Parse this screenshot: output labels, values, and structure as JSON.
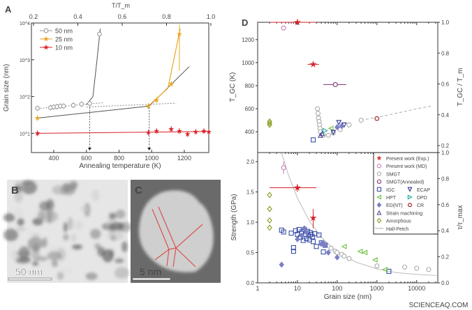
{
  "panels": {
    "a": "A",
    "b": "B",
    "c": "C",
    "d": "D"
  },
  "micrographs": {
    "b_scale": "50 nm",
    "c_scale": "5 nm"
  },
  "watermark": "SCIENCEAQ.COM",
  "chart_data": [
    {
      "id": "A",
      "type": "line",
      "xlabel": "Annealing temperature (K)",
      "ylabel": "Grain size (nm)",
      "top_xlabel": "T/T_m",
      "x_ticks": [
        400,
        600,
        800,
        1000,
        1200
      ],
      "top_ticks": [
        "0.2",
        "0.4",
        "0.6",
        "0.8",
        "1.0"
      ],
      "y_ticks": [
        "10^1",
        "10^2",
        "10^3",
        "10^4"
      ],
      "xlim": [
        263,
        1350
      ],
      "ylim": [
        3,
        10000
      ],
      "yscale": "log",
      "toplim": [
        0.2,
        1.0
      ],
      "legend_position": "top-left",
      "series": [
        {
          "name": "50 nm",
          "color": "#999999",
          "marker": "circle",
          "filled": false,
          "x": [
            300,
            380,
            400,
            420,
            440,
            460,
            520,
            570,
            620,
            680
          ],
          "y": [
            48,
            50,
            52,
            53,
            55,
            55,
            58,
            62,
            65,
            5000
          ]
        },
        {
          "name": "25 nm",
          "color": "#e8a620",
          "marker": "star",
          "filled": true,
          "x": [
            300,
            980,
            1030,
            1120,
            1170
          ],
          "y": [
            26,
            55,
            80,
            220,
            5000
          ]
        },
        {
          "name": "10 nm",
          "color": "#d62027",
          "marker": "star",
          "filled": true,
          "x": [
            300,
            980,
            1030,
            1120,
            1170,
            1220,
            1270,
            1320,
            1350
          ],
          "y": [
            10,
            10.5,
            11.5,
            13,
            11.5,
            9.5,
            11,
            11.5,
            11
          ]
        }
      ],
      "critical_temperatures": [
        620,
        985
      ]
    },
    {
      "id": "D-top",
      "type": "scatter",
      "ylabel": "T_GC (K)",
      "right_ylabel": "T_GC / T_m",
      "y_ticks": [
        400,
        600,
        800,
        1000,
        1200
      ],
      "right_ticks": [
        "0.2",
        "0.4",
        "0.6",
        "0.8",
        "1.0"
      ],
      "xlim": [
        1,
        34000
      ],
      "xscale": "log",
      "ylim": [
        220,
        1350
      ],
      "right_lim": [
        0.2,
        1.0
      ],
      "series": [
        {
          "key": "exp",
          "x": [
            10,
            25
          ],
          "y": [
            1350,
            985
          ],
          "xerr": [
            [
              2,
              30
            ],
            [
              18,
              35
            ]
          ]
        },
        {
          "key": "md",
          "x": [
            4.5
          ],
          "y": [
            1300
          ]
        },
        {
          "key": "smgt_annealed",
          "x": [
            90
          ],
          "y": [
            810
          ],
          "xerr": [
            [
              45,
              170
            ]
          ]
        },
        {
          "key": "smgt",
          "x": [
            32,
            33,
            34,
            35,
            36,
            37,
            38,
            45,
            60,
            80,
            120,
            200,
            400
          ],
          "y": [
            600,
            560,
            520,
            490,
            460,
            430,
            400,
            370,
            370,
            390,
            420,
            460,
            500
          ]
        },
        {
          "key": "amorphous",
          "x": [
            2,
            2,
            2
          ],
          "y": [
            490,
            475,
            460
          ]
        },
        {
          "key": "cr",
          "x": [
            1000
          ],
          "y": [
            515
          ]
        },
        {
          "key": "igc",
          "x": [
            25
          ],
          "y": [
            330
          ]
        },
        {
          "key": "strain",
          "x": [
            38,
            42
          ],
          "y": [
            370,
            385
          ]
        },
        {
          "key": "dpd",
          "x": [
            50
          ],
          "y": [
            410
          ]
        },
        {
          "key": "hpt",
          "x": [
            70
          ],
          "y": [
            430
          ]
        },
        {
          "key": "ecap",
          "x": [
            80,
            110,
            150
          ],
          "y": [
            395,
            480,
            460
          ]
        },
        {
          "key": "ednt",
          "x": [
            100,
            130
          ],
          "y": [
            440,
            450
          ]
        }
      ],
      "trend": {
        "x": [
          400,
          1000,
          3000,
          10000,
          25000
        ],
        "y": [
          500,
          525,
          560,
          600,
          625
        ]
      }
    },
    {
      "id": "D-bottom",
      "type": "scatter",
      "xlabel": "Grain size (nm)",
      "ylabel": "Strength (GPa)",
      "right_ylabel": "τ/τ_max",
      "x_ticks": [
        "1",
        "10",
        "100",
        "1000",
        "10000"
      ],
      "y_ticks": [
        "0.0",
        "0.5",
        "1.0",
        "1.5",
        "2.0"
      ],
      "right_ticks": [
        "0.0",
        "0.2",
        "0.4",
        "0.6",
        "0.8",
        "1.0"
      ],
      "xlim": [
        1,
        34000
      ],
      "xscale": "log",
      "ylim": [
        0,
        2.15
      ],
      "right_lim": [
        0,
        1.0
      ],
      "legend_position": "top-right",
      "legend": [
        {
          "key": "exp",
          "label": "Present work (Exp.)",
          "color": "#d62027",
          "marker": "star",
          "filled": true
        },
        {
          "key": "md",
          "label": "Present work (MD)",
          "color": "#c878b4",
          "marker": "circle"
        },
        {
          "key": "smgt",
          "label": "SMGT",
          "color": "#aaaaaa",
          "marker": "circle"
        },
        {
          "key": "smgt_annealed",
          "label": "SMGT(Annealed)",
          "color": "#7b2d6e",
          "marker": "circle"
        },
        {
          "key": "igc",
          "label": "IGC",
          "color": "#3a4fa8",
          "marker": "square"
        },
        {
          "key": "ecap",
          "label": "ECAP",
          "color": "#2a2f8a",
          "marker": "tri-down"
        },
        {
          "key": "hpt",
          "label": "HPT",
          "color": "#6cbf3c",
          "marker": "tri-left"
        },
        {
          "key": "dpd",
          "label": "DPD",
          "color": "#1aa6a0",
          "marker": "tri-right"
        },
        {
          "key": "ednt",
          "label": "ED(NT)",
          "color": "#7a7fc4",
          "marker": "diamond",
          "filled": true
        },
        {
          "key": "cr",
          "label": "CR",
          "color": "#a02a2a",
          "marker": "hexagon"
        },
        {
          "key": "strain",
          "label": "Strain machining",
          "color": "#4a4a9a",
          "marker": "tri-up"
        },
        {
          "key": "amorphous",
          "label": "Amorphous",
          "color": "#8a9a20",
          "marker": "diamond"
        },
        {
          "key": "hallpetch",
          "label": "Hall-Petch",
          "color": "#bbbbbb",
          "marker": "line"
        }
      ],
      "series": [
        {
          "key": "exp",
          "x": [
            10,
            25
          ],
          "y": [
            1.57,
            1.07
          ],
          "xerr": [
            [
              2,
              30
            ],
            null
          ],
          "yerr": [
            [
              1.5,
              1.63
            ],
            [
              0.9,
              1.22
            ]
          ]
        },
        {
          "key": "md",
          "x": [
            4.5
          ],
          "y": [
            1.9
          ],
          "yerr": [
            [
              1.8,
              2.0
            ]
          ]
        },
        {
          "key": "amorphous",
          "x": [
            2,
            2,
            2,
            2
          ],
          "y": [
            1.45,
            1.22,
            1.03,
            0.91
          ]
        },
        {
          "key": "igc",
          "x": [
            4,
            4.5,
            7,
            8,
            8,
            9,
            10,
            11,
            12,
            13,
            14,
            15,
            16,
            17,
            18,
            19,
            20,
            21,
            22,
            24,
            25,
            27,
            30,
            35,
            40,
            45,
            50,
            2000
          ],
          "y": [
            0.87,
            0.84,
            0.82,
            0.52,
            0.58,
            0.86,
            0.8,
            0.88,
            0.75,
            0.84,
            0.7,
            0.88,
            0.8,
            0.73,
            0.85,
            0.78,
            0.71,
            0.83,
            0.8,
            0.76,
            0.68,
            0.81,
            0.6,
            0.79,
            0.66,
            0.51,
            0.62,
            0.19
          ]
        },
        {
          "key": "ednt",
          "x": [
            4,
            10,
            13,
            15,
            17,
            40,
            45,
            50,
            60,
            100
          ],
          "y": [
            0.3,
            0.72,
            0.78,
            0.9,
            0.83,
            0.64,
            0.66,
            0.62,
            0.5,
            0.42
          ]
        },
        {
          "key": "smgt",
          "x": [
            70,
            90,
            100,
            130,
            150,
            200,
            1000,
            5000,
            10000,
            20000
          ],
          "y": [
            0.57,
            0.52,
            0.5,
            0.47,
            0.44,
            0.4,
            0.28,
            0.26,
            0.24,
            0.22
          ]
        },
        {
          "key": "hpt",
          "x": [
            150,
            380,
            500,
            900,
            1600
          ],
          "y": [
            0.6,
            0.52,
            0.5,
            0.38,
            0.22
          ]
        }
      ],
      "hall_petch": {
        "x": [
          4,
          6,
          10,
          20,
          40,
          100,
          300,
          1000,
          3000,
          10000,
          34000
        ],
        "y": [
          2.15,
          1.77,
          1.4,
          1.02,
          0.75,
          0.51,
          0.34,
          0.23,
          0.17,
          0.14,
          0.12
        ]
      }
    }
  ]
}
